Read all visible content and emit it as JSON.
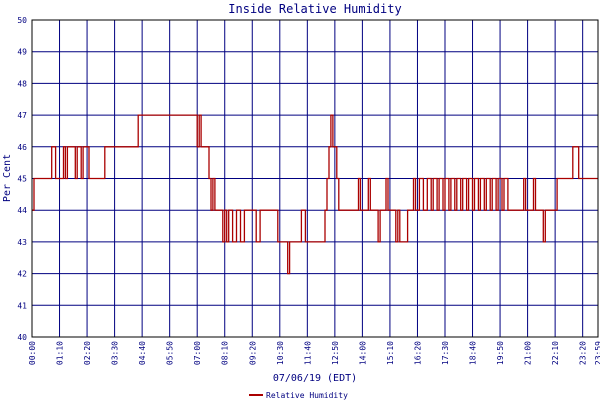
{
  "chart_data": {
    "type": "line",
    "title": "Inside Relative Humidity",
    "xlabel": "07/06/19 (EDT)",
    "ylabel": "Per Cent",
    "ylim": [
      40,
      50
    ],
    "y_ticks": [
      "40",
      "41",
      "42",
      "43",
      "44",
      "45",
      "46",
      "47",
      "48",
      "49",
      "50"
    ],
    "x_ticks": [
      "00:00",
      "01:10",
      "02:20",
      "03:30",
      "04:40",
      "05:50",
      "07:00",
      "08:10",
      "09:20",
      "10:30",
      "11:40",
      "12:50",
      "14:00",
      "15:10",
      "16:20",
      "17:30",
      "18:40",
      "19:50",
      "21:00",
      "22:10",
      "23:20",
      "23:59"
    ],
    "grid": true,
    "legend_position": "bottom-center",
    "colors": {
      "series": "#aa0000",
      "grid": "#000080",
      "text": "#000080",
      "frame": "#000000"
    },
    "series": [
      {
        "name": "Relative Humidity",
        "points": [
          [
            "00:00",
            44
          ],
          [
            "00:05",
            45
          ],
          [
            "00:45",
            45
          ],
          [
            "00:50",
            46
          ],
          [
            "01:00",
            45
          ],
          [
            "01:10",
            45
          ],
          [
            "01:20",
            46
          ],
          [
            "01:25",
            45
          ],
          [
            "01:30",
            46
          ],
          [
            "01:50",
            45
          ],
          [
            "01:55",
            46
          ],
          [
            "02:05",
            45
          ],
          [
            "02:10",
            46
          ],
          [
            "02:20",
            46
          ],
          [
            "02:25",
            45
          ],
          [
            "03:00",
            45
          ],
          [
            "03:05",
            46
          ],
          [
            "04:25",
            46
          ],
          [
            "04:30",
            47
          ],
          [
            "06:55",
            47
          ],
          [
            "07:00",
            46
          ],
          [
            "07:05",
            47
          ],
          [
            "07:10",
            46
          ],
          [
            "07:20",
            46
          ],
          [
            "07:30",
            45
          ],
          [
            "07:35",
            44
          ],
          [
            "07:40",
            45
          ],
          [
            "07:45",
            44
          ],
          [
            "08:00",
            44
          ],
          [
            "08:05",
            43
          ],
          [
            "08:10",
            44
          ],
          [
            "08:15",
            43
          ],
          [
            "08:20",
            44
          ],
          [
            "08:30",
            43
          ],
          [
            "08:40",
            44
          ],
          [
            "08:50",
            43
          ],
          [
            "09:00",
            44
          ],
          [
            "09:30",
            43
          ],
          [
            "09:40",
            44
          ],
          [
            "10:20",
            44
          ],
          [
            "10:25",
            43
          ],
          [
            "10:45",
            43
          ],
          [
            "10:50",
            42
          ],
          [
            "10:55",
            43
          ],
          [
            "11:20",
            43
          ],
          [
            "11:25",
            44
          ],
          [
            "11:35",
            43
          ],
          [
            "12:20",
            43
          ],
          [
            "12:25",
            44
          ],
          [
            "12:30",
            45
          ],
          [
            "12:35",
            46
          ],
          [
            "12:40",
            47
          ],
          [
            "12:45",
            46
          ],
          [
            "12:55",
            45
          ],
          [
            "13:00",
            44
          ],
          [
            "13:45",
            44
          ],
          [
            "13:50",
            45
          ],
          [
            "13:55",
            44
          ],
          [
            "14:10",
            44
          ],
          [
            "14:15",
            45
          ],
          [
            "14:20",
            44
          ],
          [
            "14:35",
            44
          ],
          [
            "14:40",
            43
          ],
          [
            "14:45",
            44
          ],
          [
            "14:55",
            44
          ],
          [
            "15:00",
            45
          ],
          [
            "15:05",
            44
          ],
          [
            "15:20",
            44
          ],
          [
            "15:25",
            43
          ],
          [
            "15:30",
            44
          ],
          [
            "15:35",
            43
          ],
          [
            "15:50",
            43
          ],
          [
            "15:55",
            44
          ],
          [
            "16:05",
            44
          ],
          [
            "16:10",
            45
          ],
          [
            "16:15",
            44
          ],
          [
            "16:25",
            45
          ],
          [
            "16:35",
            44
          ],
          [
            "16:45",
            45
          ],
          [
            "16:55",
            44
          ],
          [
            "17:00",
            45
          ],
          [
            "17:10",
            44
          ],
          [
            "17:15",
            45
          ],
          [
            "17:25",
            44
          ],
          [
            "17:30",
            45
          ],
          [
            "17:40",
            44
          ],
          [
            "17:45",
            45
          ],
          [
            "17:55",
            44
          ],
          [
            "18:00",
            45
          ],
          [
            "18:10",
            44
          ],
          [
            "18:15",
            45
          ],
          [
            "18:25",
            44
          ],
          [
            "18:30",
            45
          ],
          [
            "18:40",
            44
          ],
          [
            "18:45",
            45
          ],
          [
            "18:55",
            44
          ],
          [
            "19:00",
            45
          ],
          [
            "19:10",
            44
          ],
          [
            "19:15",
            45
          ],
          [
            "19:25",
            44
          ],
          [
            "19:30",
            45
          ],
          [
            "19:40",
            44
          ],
          [
            "19:45",
            45
          ],
          [
            "19:55",
            44
          ],
          [
            "20:00",
            45
          ],
          [
            "20:10",
            44
          ],
          [
            "20:45",
            44
          ],
          [
            "20:50",
            45
          ],
          [
            "20:55",
            44
          ],
          [
            "21:10",
            44
          ],
          [
            "21:15",
            45
          ],
          [
            "21:20",
            44
          ],
          [
            "21:35",
            44
          ],
          [
            "21:40",
            43
          ],
          [
            "21:45",
            44
          ],
          [
            "22:10",
            44
          ],
          [
            "22:15",
            45
          ],
          [
            "22:50",
            45
          ],
          [
            "22:55",
            46
          ],
          [
            "23:05",
            46
          ],
          [
            "23:10",
            45
          ],
          [
            "23:59",
            45
          ]
        ]
      }
    ]
  }
}
